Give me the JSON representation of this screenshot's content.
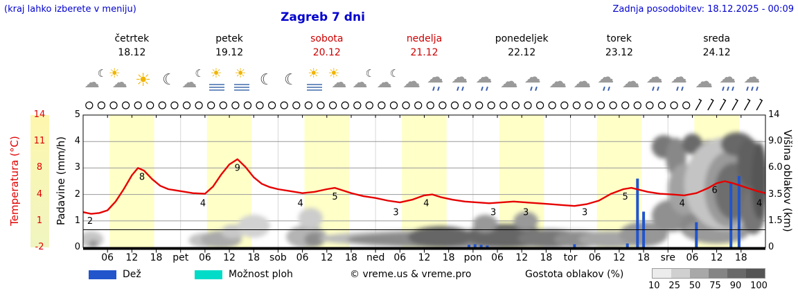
{
  "header": {
    "hint": "(kraj lahko izberete v meniju)",
    "title": "Zagreb 7 dni",
    "updated": "Zadnja posodobitev: 18.12.2025 - 00:09"
  },
  "days": [
    {
      "name": "četrtek",
      "date": "18.12",
      "color": "#000000"
    },
    {
      "name": "petek",
      "date": "19.12",
      "color": "#000000"
    },
    {
      "name": "sobota",
      "date": "20.12",
      "color": "#cc0000"
    },
    {
      "name": "nedelja",
      "date": "21.12",
      "color": "#cc0000"
    },
    {
      "name": "ponedeljek",
      "date": "22.12",
      "color": "#000000"
    },
    {
      "name": "torek",
      "date": "23.12",
      "color": "#000000"
    },
    {
      "name": "sreda",
      "date": "24.12",
      "color": "#000000"
    }
  ],
  "icons": [
    "cloud-moon",
    "partly-sunny",
    "sunny",
    "moon",
    "cloud-moon",
    "fog-sun",
    "fog-sun",
    "moon",
    "moon",
    "fog-sun",
    "partly-sunny",
    "cloud-moon",
    "cloud-moon",
    "cloud",
    "cloud-drizzle",
    "cloud-drizzle",
    "cloud-drizzle",
    "cloud",
    "cloud-drizzle",
    "cloud",
    "cloud",
    "cloud-drizzle",
    "cloud",
    "cloud-drizzle",
    "cloud-drizzle",
    "cloud",
    "cloud-rain",
    "cloud-rain"
  ],
  "axes": {
    "temp_label": "Temperatura (°C)",
    "temp_ticks": [
      "14",
      "11",
      "8",
      "4",
      "1",
      "-2"
    ],
    "precip_label": "Padavine (mm/h)",
    "precip_ticks": [
      "5",
      "4",
      "3",
      "2",
      "1",
      "0"
    ],
    "cloud_label": "Višina oblakov (km)",
    "cloud_ticks": [
      "14",
      "9.0",
      "6.0",
      "3.5",
      "1.5",
      "0"
    ],
    "x_ticks": [
      "06",
      "12",
      "18",
      "pet",
      "06",
      "12",
      "18",
      "sob",
      "06",
      "12",
      "18",
      "ned",
      "06",
      "12",
      "18",
      "pon",
      "06",
      "12",
      "18",
      "tor",
      "06",
      "12",
      "18",
      "sre",
      "06",
      "12",
      "18"
    ]
  },
  "legend": {
    "rain": "Dež",
    "rain_color": "#2255cc",
    "showers": "Možnost ploh",
    "showers_color": "#00dcc8",
    "copyright": "© vreme.us & vreme.pro",
    "cloud_density": "Gostota oblakov (%)",
    "density_ticks": [
      "10",
      "25",
      "50",
      "75",
      "90",
      "100"
    ]
  },
  "chart_data": {
    "type": "line",
    "title": "Zagreb 7 dni meteogram",
    "x_unit": "hours from čet 00:00",
    "x_range": [
      0,
      168
    ],
    "temp_scale_c": [
      -2,
      1,
      4,
      8,
      11,
      14
    ],
    "precip_scale_mmh": [
      0,
      1,
      2,
      3,
      4,
      5
    ],
    "cloud_height_scale_km": [
      0,
      1.5,
      3.5,
      6,
      9,
      14
    ],
    "daylight_band": {
      "start_hour": 6.5,
      "end_hour": 17.5,
      "color": "#ffffc8"
    },
    "temperature_c": {
      "color": "#e60000",
      "points": [
        [
          0,
          2
        ],
        [
          2,
          1.8
        ],
        [
          4,
          1.9
        ],
        [
          6,
          2.2
        ],
        [
          8,
          3.2
        ],
        [
          10,
          4.8
        ],
        [
          12,
          6.9
        ],
        [
          13.5,
          8
        ],
        [
          15,
          7.6
        ],
        [
          17,
          6.3
        ],
        [
          19,
          5.3
        ],
        [
          21,
          4.8
        ],
        [
          24,
          4.5
        ],
        [
          27,
          4.2
        ],
        [
          30,
          4.1
        ],
        [
          32,
          5.2
        ],
        [
          34,
          7
        ],
        [
          36,
          8.4
        ],
        [
          38,
          9
        ],
        [
          40,
          8.1
        ],
        [
          42,
          6.6
        ],
        [
          44,
          5.6
        ],
        [
          46,
          5.1
        ],
        [
          48,
          4.8
        ],
        [
          51,
          4.5
        ],
        [
          54,
          4.2
        ],
        [
          57,
          4.4
        ],
        [
          60,
          4.8
        ],
        [
          62,
          5
        ],
        [
          64,
          4.6
        ],
        [
          66,
          4.2
        ],
        [
          69,
          3.8
        ],
        [
          72,
          3.6
        ],
        [
          75,
          3.3
        ],
        [
          78,
          3.1
        ],
        [
          81,
          3.4
        ],
        [
          84,
          3.9
        ],
        [
          86,
          4
        ],
        [
          88,
          3.7
        ],
        [
          91,
          3.4
        ],
        [
          94,
          3.2
        ],
        [
          97,
          3.1
        ],
        [
          100,
          3
        ],
        [
          103,
          3.1
        ],
        [
          106,
          3.2
        ],
        [
          109,
          3.1
        ],
        [
          112,
          3
        ],
        [
          115,
          2.9
        ],
        [
          118,
          2.8
        ],
        [
          121,
          2.7
        ],
        [
          124,
          2.9
        ],
        [
          127,
          3.3
        ],
        [
          130,
          4.1
        ],
        [
          133,
          4.8
        ],
        [
          135,
          5
        ],
        [
          137,
          4.7
        ],
        [
          139,
          4.4
        ],
        [
          142,
          4.1
        ],
        [
          145,
          4
        ],
        [
          148,
          3.9
        ],
        [
          151,
          4.2
        ],
        [
          154,
          5
        ],
        [
          156,
          5.7
        ],
        [
          158,
          6
        ],
        [
          160,
          5.7
        ],
        [
          162,
          5.3
        ],
        [
          164,
          4.9
        ],
        [
          166,
          4.5
        ],
        [
          168,
          4.2
        ]
      ]
    },
    "temperature_labels": [
      [
        1.7,
        2
      ],
      [
        14.5,
        8
      ],
      [
        29.5,
        4
      ],
      [
        38,
        9
      ],
      [
        53.5,
        4
      ],
      [
        62,
        5
      ],
      [
        77,
        3
      ],
      [
        84.5,
        4
      ],
      [
        101,
        3
      ],
      [
        109,
        3
      ],
      [
        123.5,
        3
      ],
      [
        133.5,
        5
      ],
      [
        147.5,
        4
      ],
      [
        155.5,
        6
      ],
      [
        166.5,
        4
      ]
    ],
    "rain_bars_mmh": [
      [
        95,
        0.1
      ],
      [
        96.5,
        0.12
      ],
      [
        98,
        0.1
      ],
      [
        99.5,
        0.07
      ],
      [
        121,
        0.12
      ],
      [
        134,
        0.15
      ],
      [
        136.5,
        2.6
      ],
      [
        138,
        1.35
      ],
      [
        151,
        0.95
      ],
      [
        159.5,
        2.45
      ],
      [
        161.5,
        2.7
      ]
    ],
    "cloud_blobs": [
      [
        2,
        0.45,
        3,
        0.5,
        "#c6c6c6"
      ],
      [
        2.5,
        0.2,
        1.2,
        0.25,
        "#969696"
      ],
      [
        30,
        0.4,
        4,
        0.45,
        "#c2c2c2"
      ],
      [
        34,
        0.45,
        5,
        0.55,
        "#aaaaaa"
      ],
      [
        37,
        0.9,
        3,
        0.4,
        "#c8c8c8"
      ],
      [
        42,
        1.2,
        4,
        0.7,
        "#d2d2d2"
      ],
      [
        55,
        0.6,
        5,
        0.7,
        "#b4b4b4"
      ],
      [
        56,
        1.7,
        3,
        0.7,
        "#cccccc"
      ],
      [
        57,
        0.45,
        2.5,
        0.4,
        "#8c8c8c"
      ],
      [
        100,
        0.5,
        42,
        0.6,
        "#bbbbbb"
      ],
      [
        95,
        0.45,
        30,
        0.5,
        "#8a8a8a"
      ],
      [
        88,
        0.6,
        8,
        0.6,
        "#666666"
      ],
      [
        104,
        0.65,
        10,
        0.7,
        "#666666"
      ],
      [
        115,
        0.5,
        8,
        0.55,
        "#787878"
      ],
      [
        122,
        0.45,
        6,
        0.5,
        "#8e8e8e"
      ],
      [
        130,
        0.45,
        8,
        0.5,
        "#a6a6a6"
      ],
      [
        138,
        0.75,
        6,
        0.7,
        "#979797"
      ],
      [
        99,
        1.35,
        3,
        0.55,
        "#999999"
      ],
      [
        109,
        1.5,
        3,
        0.6,
        "#999999"
      ],
      [
        145,
        1.9,
        5,
        1.1,
        "#909090"
      ],
      [
        143,
        8.4,
        3,
        1.5,
        "#787878"
      ],
      [
        146,
        7.2,
        2.5,
        2.2,
        "#888888"
      ],
      [
        150,
        8.7,
        2.5,
        1.4,
        "#6a6a6a"
      ],
      [
        148,
        4,
        4,
        2.2,
        "#a2a2a2"
      ],
      [
        152,
        1.2,
        5,
        0.9,
        "#888888"
      ],
      [
        156,
        0.9,
        8,
        0.7,
        "#9a9a9a"
      ],
      [
        154,
        8,
        2,
        1.2,
        "#8a8a8a"
      ],
      [
        158,
        4.5,
        10,
        4,
        "#c4c4c4"
      ],
      [
        159,
        4,
        6,
        3.2,
        "#9a9a9a"
      ],
      [
        160,
        3.8,
        4.5,
        2.4,
        "#6e6e6e"
      ],
      [
        161,
        8.7,
        4,
        1.6,
        "#686868"
      ],
      [
        164,
        6.6,
        3,
        2.6,
        "#606060"
      ],
      [
        165,
        2.2,
        3,
        1.6,
        "#767676"
      ],
      [
        166.5,
        4.8,
        2,
        3.5,
        "#565656"
      ]
    ],
    "symbol_row": {
      "circle_start_hour": 1.5,
      "circle_step_hours": 3,
      "circle_count": 50,
      "barb_hours": [
        151.5,
        154.5,
        157.5,
        160.5,
        163.5,
        166.5
      ]
    }
  }
}
